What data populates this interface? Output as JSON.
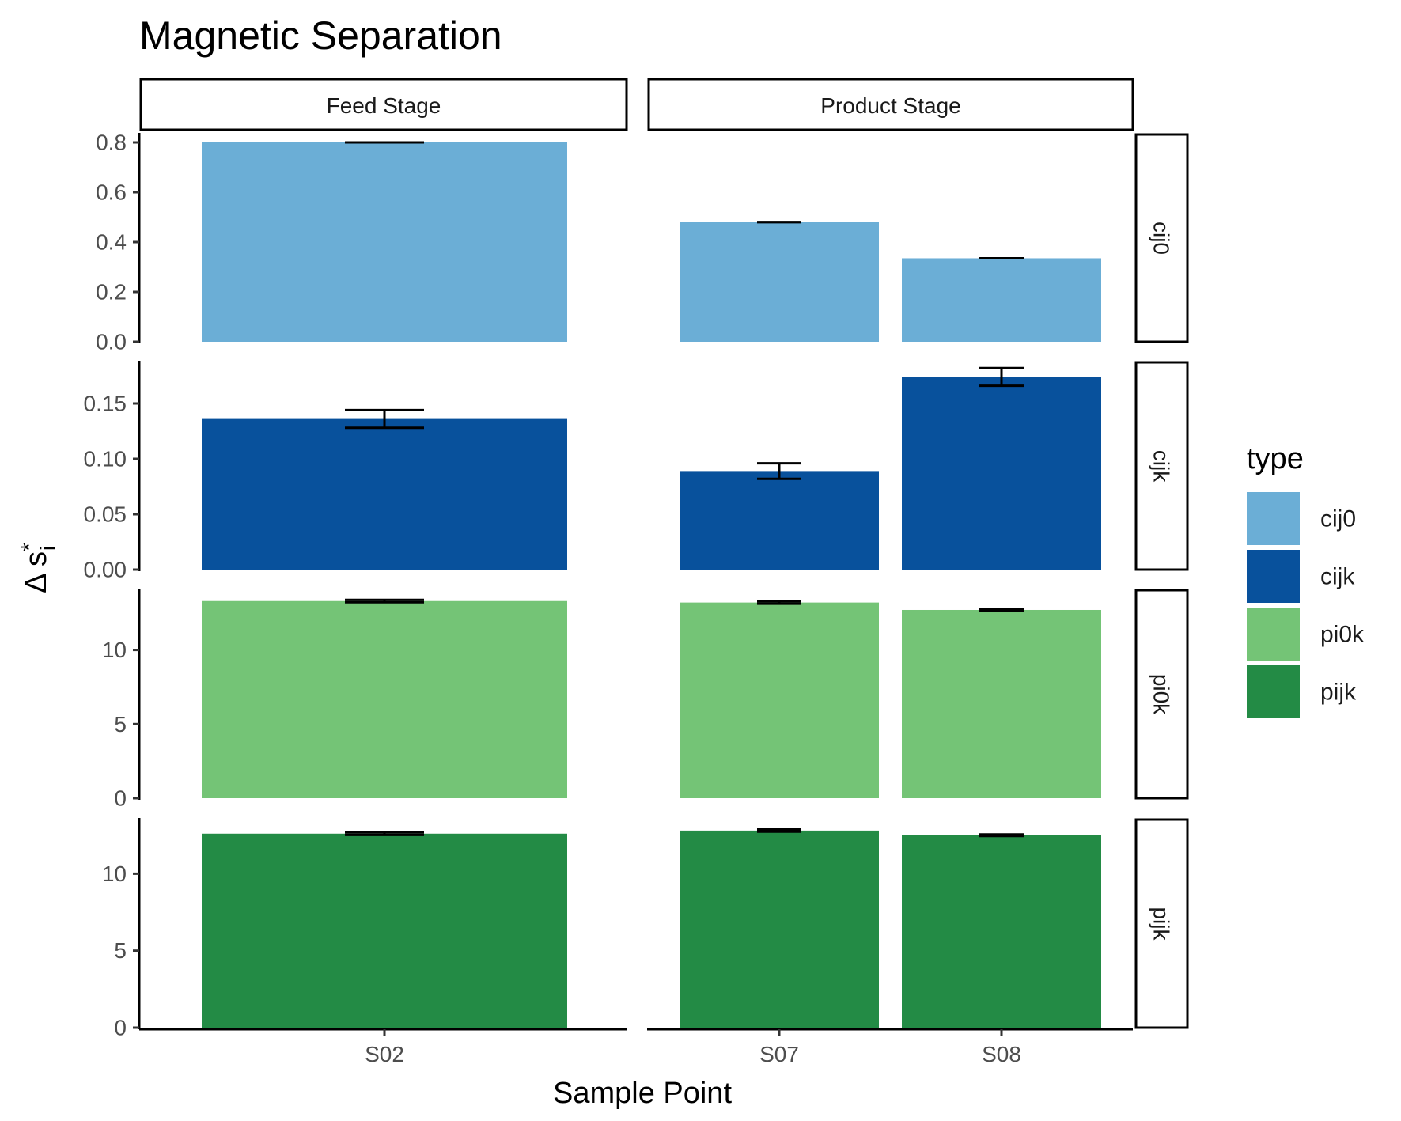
{
  "chart_data": {
    "type": "bar",
    "title": "Magnetic Separation",
    "xlabel": "Sample Point",
    "ylabel": {
      "main": "Δ  s",
      "superscript": "*",
      "subscript": "i"
    },
    "columns": [
      {
        "label": "Feed Stage",
        "categories": [
          "S02"
        ]
      },
      {
        "label": "Product Stage",
        "categories": [
          "S07",
          "S08"
        ]
      }
    ],
    "rows": [
      {
        "label": "cij0",
        "ylim": [
          0,
          0.8
        ],
        "ticks": [
          0,
          0.2,
          0.4,
          0.6,
          0.8
        ],
        "tick_labels": [
          "0.0",
          "0.2",
          "0.4",
          "0.6",
          "0.8"
        ]
      },
      {
        "label": "cijk",
        "ylim": [
          0,
          0.18
        ],
        "ticks": [
          0,
          0.05,
          0.1,
          0.15
        ],
        "tick_labels": [
          "0.00",
          "0.05",
          "0.10",
          "0.15"
        ]
      },
      {
        "label": "pi0k",
        "ylim": [
          0,
          13.5
        ],
        "ticks": [
          0,
          5,
          10
        ],
        "tick_labels": [
          "0",
          "5",
          "10"
        ]
      },
      {
        "label": "pijk",
        "ylim": [
          0,
          13.0
        ],
        "ticks": [
          0,
          5,
          10
        ],
        "tick_labels": [
          "0",
          "5",
          "10"
        ]
      }
    ],
    "series": [
      {
        "name": "cij0",
        "color": "#6baed6",
        "values": {
          "S02": 0.8,
          "S07": 0.48,
          "S08": 0.335
        },
        "errors": {
          "S02": 0.0,
          "S07": 0.0,
          "S08": 0.0
        }
      },
      {
        "name": "cijk",
        "color": "#08519c",
        "values": {
          "S02": 0.136,
          "S07": 0.089,
          "S08": 0.174
        },
        "errors": {
          "S02": 0.008,
          "S07": 0.007,
          "S08": 0.008
        }
      },
      {
        "name": "pi0k",
        "color": "#74c476",
        "values": {
          "S02": 13.3,
          "S07": 13.2,
          "S08": 12.7
        },
        "errors": {
          "S02": 0.08,
          "S07": 0.08,
          "S08": 0.05
        }
      },
      {
        "name": "pijk",
        "color": "#238b45",
        "values": {
          "S02": 12.6,
          "S07": 12.8,
          "S08": 12.5
        },
        "errors": {
          "S02": 0.08,
          "S07": 0.07,
          "S08": 0.05
        }
      }
    ],
    "legend": {
      "title": "type",
      "position": "right",
      "entries": [
        "cij0",
        "cijk",
        "pi0k",
        "pijk"
      ]
    },
    "grid": false
  }
}
